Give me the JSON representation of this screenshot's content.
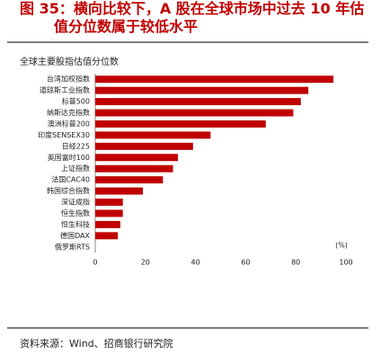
{
  "chart_data": {
    "type": "barh",
    "title": "图 35：横向比较下，A 股在全球市场中过去 10 年估值分位数属于较低水平",
    "subtitle": "全球主要股指估值分位数",
    "unit_label": "(%)",
    "source": "资料来源：Wind、招商银行研究院",
    "categories": [
      "台湾加权指数",
      "道琼斯工业指数",
      "标普500",
      "纳斯达克指数",
      "澳洲标普200",
      "印度SENSEX30",
      "日经225",
      "英国富时100",
      "上证指数",
      "法国CAC40",
      "韩国综合指数",
      "深证成指",
      "恒生指数",
      "恒生科技",
      "德国DAX",
      "俄罗斯RTS"
    ],
    "values": [
      95,
      85,
      82,
      79,
      68,
      46,
      39,
      33,
      31,
      27,
      19,
      11,
      11,
      10,
      9,
      0
    ],
    "color": "#c00000",
    "xlim": [
      0,
      100
    ],
    "xticks": [
      0,
      20,
      40,
      60,
      80,
      100
    ],
    "grid": false
  }
}
